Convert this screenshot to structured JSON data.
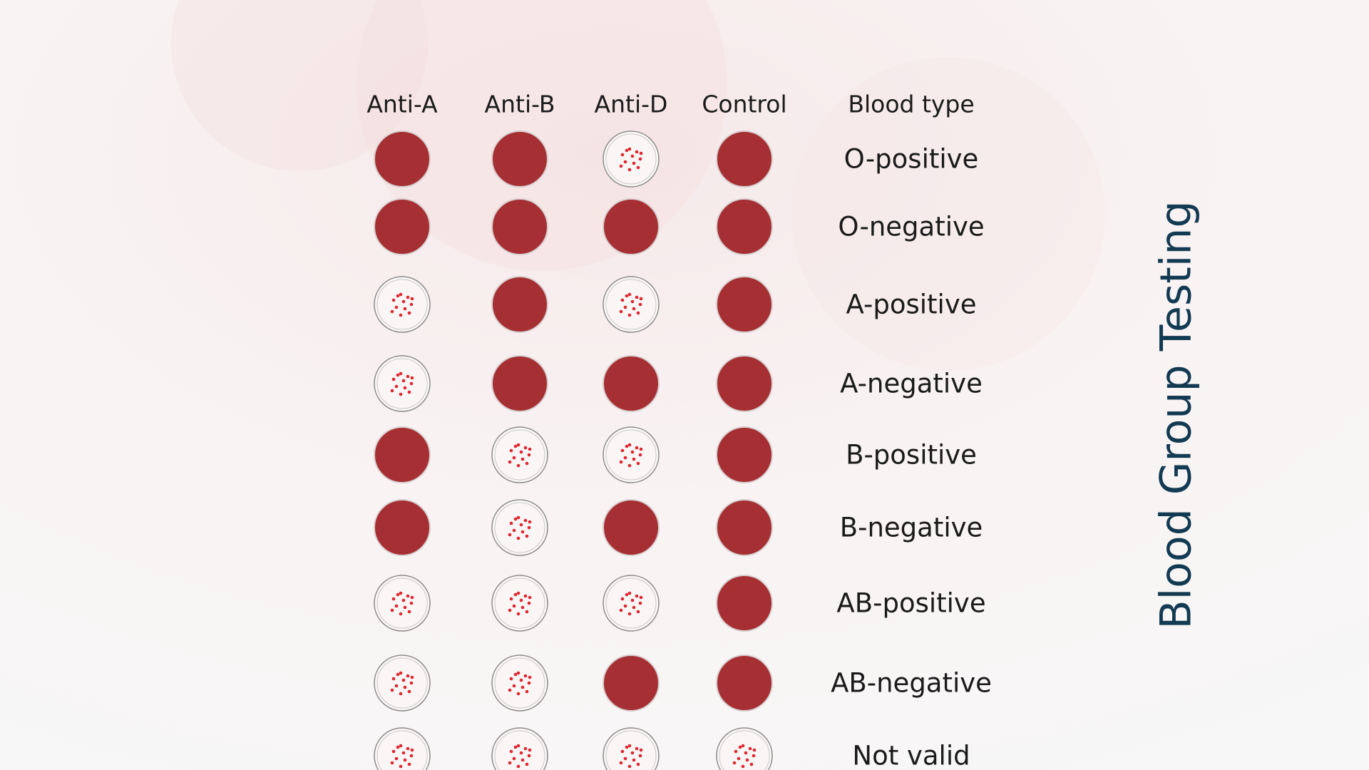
{
  "title": "Blood Group Testing",
  "columns": [
    "Anti-A",
    "Anti-B",
    "Anti-D",
    "Control",
    "Blood type"
  ],
  "rows": [
    {
      "label": "O-positive",
      "agglutination": [
        false,
        false,
        true,
        false
      ]
    },
    {
      "label": "O-negative",
      "agglutination": [
        false,
        false,
        false,
        false
      ]
    },
    {
      "label": "A-positive",
      "agglutination": [
        true,
        false,
        true,
        false
      ]
    },
    {
      "label": "A-negative",
      "agglutination": [
        true,
        false,
        false,
        false
      ]
    },
    {
      "label": "B-positive",
      "agglutination": [
        false,
        true,
        true,
        false
      ]
    },
    {
      "label": "B-negative",
      "agglutination": [
        false,
        true,
        false,
        false
      ]
    },
    {
      "label": "AB-positive",
      "agglutination": [
        true,
        true,
        true,
        false
      ]
    },
    {
      "label": "AB-negative",
      "agglutination": [
        true,
        true,
        false,
        false
      ]
    },
    {
      "label": "Not valid",
      "agglutination": [
        true,
        true,
        true,
        true
      ]
    }
  ]
}
